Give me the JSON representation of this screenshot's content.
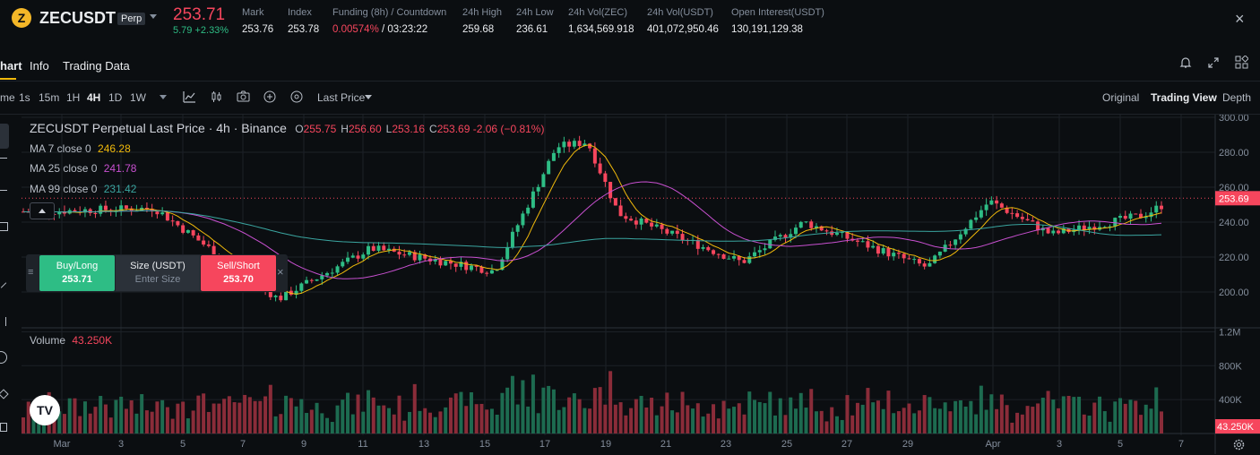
{
  "header": {
    "symbol": "ZECUSDT",
    "badge": "Perp",
    "last_price": "253.71",
    "change": "5.79 +2.33%",
    "stats": [
      {
        "label": "Mark",
        "value": "253.76"
      },
      {
        "label": "Index",
        "value": "253.78"
      },
      {
        "label": "Funding (8h) / Countdown",
        "value_red": "0.00574%",
        "value": " / 03:23:22"
      },
      {
        "label": "24h High",
        "value": "259.68"
      },
      {
        "label": "24h Low",
        "value": "236.61"
      },
      {
        "label": "24h Vol(ZEC)",
        "value": "1,634,569.918"
      },
      {
        "label": "24h Vol(USDT)",
        "value": "401,072,950.46"
      },
      {
        "label": "Open Interest(USDT)",
        "value": "130,191,129.38"
      }
    ]
  },
  "tabs": [
    "hart",
    "Info",
    "Trading Data"
  ],
  "toolbar": {
    "intervals": [
      "me",
      "1s",
      "15m",
      "1H",
      "4H",
      "1D",
      "1W"
    ],
    "active_interval": "4H",
    "price_type": "Last Price",
    "views": [
      "Original",
      "Trading View",
      "Depth"
    ],
    "active_view": "Trading View"
  },
  "legend": {
    "title": "ZECUSDT Perpetual Last Price · 4h · Binance",
    "ohlc": [
      {
        "k": "O",
        "v": "255.75"
      },
      {
        "k": "H",
        "v": "256.60"
      },
      {
        "k": "L",
        "v": "253.16"
      },
      {
        "k": "C",
        "v": "253.69"
      }
    ],
    "change": "-2.06 (−0.81%)",
    "ma7_label": "MA 7 close 0",
    "ma7_value": "246.28",
    "ma25_label": "MA 25 close 0",
    "ma25_value": "241.78",
    "ma99_label": "MA 99 close 0",
    "ma99_value": "231.42",
    "volume_label": "Volume",
    "volume_value": "43.250K"
  },
  "order_widget": {
    "buy_label": "Buy/Long",
    "buy_price": "253.71",
    "size_label": "Size (USDT)",
    "size_placeholder": "Enter Size",
    "sell_label": "Sell/Short",
    "sell_price": "253.70"
  },
  "colors": {
    "up": "#2ebd85",
    "down": "#f6465d",
    "ma7": "#f0b90b",
    "ma25": "#c850d0",
    "ma99": "#3aa5a0"
  },
  "chart_data": {
    "type": "candlestick",
    "price_axis": [
      "300.00",
      "280.00",
      "260.00",
      "240.00",
      "220.00",
      "200.00"
    ],
    "current_price_tag": "253.69",
    "volume_axis": [
      "1.2M",
      "800K",
      "400K"
    ],
    "volume_tag": "43.250K",
    "date_axis": [
      "Mar",
      "3",
      "5",
      "7",
      "9",
      "11",
      "13",
      "15",
      "17",
      "19",
      "21",
      "23",
      "25",
      "27",
      "29",
      "Apr",
      "3",
      "5",
      "7"
    ],
    "ylim": [
      190,
      302
    ],
    "volume_ylim": [
      0,
      1300000
    ],
    "key_points": [
      {
        "date": "Feb 28",
        "close": 246
      },
      {
        "date": "Mar 4",
        "close": 248
      },
      {
        "date": "Mar 8",
        "close": 196
      },
      {
        "date": "Mar 11",
        "close": 225
      },
      {
        "date": "Mar 15",
        "close": 212
      },
      {
        "date": "Mar 17",
        "close": 283
      },
      {
        "date": "Mar 18",
        "close": 286
      },
      {
        "date": "Mar 19",
        "close": 245
      },
      {
        "date": "Mar 23",
        "close": 217
      },
      {
        "date": "Mar 25",
        "close": 240
      },
      {
        "date": "Mar 29",
        "close": 214
      },
      {
        "date": "Mar 31",
        "close": 252
      },
      {
        "date": "Apr 2",
        "close": 233
      },
      {
        "date": "Apr 5",
        "close": 244
      },
      {
        "date": "Apr 6",
        "close": 253.69
      }
    ]
  }
}
